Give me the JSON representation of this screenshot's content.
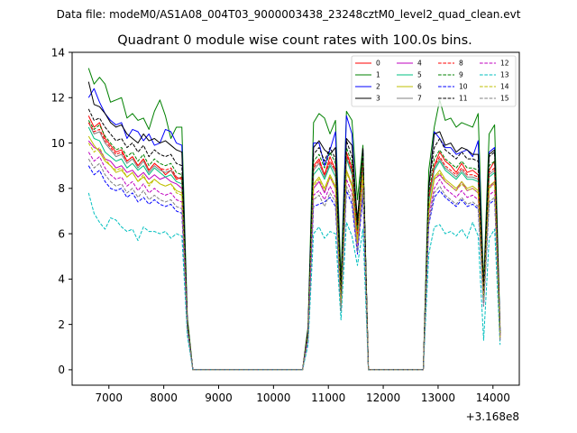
{
  "suptitle": "Data file: modeM0/AS1A08_004T03_9000003438_23248cztM0_level2_quad_clean.evt",
  "chart_data": {
    "type": "line",
    "title": "Quadrant 0 module wise count rates with 100.0s bins.",
    "xlabel": "",
    "ylabel": "",
    "x_offset_label": "+3.168e8",
    "xlim": [
      6330,
      14480
    ],
    "ylim": [
      -0.68,
      14.0
    ],
    "xticks": [
      7000,
      8000,
      9000,
      10000,
      11000,
      12000,
      13000,
      14000
    ],
    "yticks": [
      0,
      2,
      4,
      6,
      8,
      10,
      12,
      14
    ],
    "legend_position": "upper-right",
    "x": [
      6630,
      6730,
      6830,
      6930,
      7030,
      7130,
      7230,
      7330,
      7430,
      7530,
      7630,
      7730,
      7830,
      7930,
      8030,
      8130,
      8230,
      8330,
      8430,
      8530,
      10530,
      10630,
      10730,
      10830,
      10930,
      11030,
      11130,
      11230,
      11330,
      11430,
      11530,
      11630,
      11730,
      12730,
      12830,
      12930,
      13030,
      13130,
      13230,
      13330,
      13430,
      13530,
      13630,
      13730,
      13830,
      13930,
      14030,
      14130
    ],
    "series": [
      {
        "name": "0",
        "color": "#ff0000",
        "dash": "solid",
        "values": [
          11.2,
          10.7,
          10.9,
          10.2,
          9.9,
          9.6,
          9.7,
          9.2,
          9.4,
          9.0,
          9.3,
          8.8,
          9.1,
          8.9,
          8.6,
          8.8,
          8.4,
          8.5,
          2.0,
          0.0,
          0.0,
          1.5,
          9.0,
          9.3,
          8.6,
          9.4,
          8.8,
          3.0,
          9.6,
          8.9,
          6.0,
          9.4,
          0.0,
          0.0,
          7.6,
          9.0,
          9.6,
          9.2,
          9.0,
          8.7,
          9.1,
          8.7,
          8.8,
          8.6,
          3.2,
          8.8,
          9.2,
          1.5
        ]
      },
      {
        "name": "1",
        "color": "#008000",
        "dash": "solid",
        "values": [
          13.3,
          12.6,
          12.9,
          12.6,
          11.8,
          11.9,
          12.0,
          11.1,
          11.3,
          11.0,
          11.1,
          10.6,
          11.4,
          11.9,
          11.2,
          10.2,
          10.7,
          10.7,
          2.3,
          0.0,
          0.0,
          1.9,
          10.9,
          11.3,
          11.1,
          10.4,
          11.0,
          4.0,
          11.4,
          11.0,
          7.5,
          9.9,
          0.0,
          0.0,
          8.8,
          10.7,
          11.9,
          11.0,
          11.1,
          10.7,
          10.9,
          10.8,
          10.7,
          11.3,
          3.8,
          10.4,
          10.8,
          1.8
        ]
      },
      {
        "name": "2",
        "color": "#0000ff",
        "dash": "solid",
        "values": [
          12.0,
          12.4,
          11.8,
          11.3,
          11.0,
          10.8,
          10.9,
          10.2,
          10.6,
          10.5,
          10.1,
          10.4,
          9.9,
          10.0,
          10.6,
          10.5,
          10.0,
          9.9,
          2.1,
          0.0,
          0.0,
          1.7,
          10.0,
          10.0,
          9.0,
          9.7,
          10.5,
          3.4,
          11.2,
          10.4,
          6.3,
          9.7,
          0.0,
          0.0,
          8.0,
          10.5,
          10.2,
          9.8,
          9.8,
          9.5,
          9.6,
          9.7,
          9.4,
          10.1,
          3.4,
          9.6,
          9.8,
          1.7
        ]
      },
      {
        "name": "3",
        "color": "#000000",
        "dash": "solid",
        "values": [
          12.7,
          11.7,
          11.6,
          11.3,
          10.9,
          10.7,
          10.8,
          10.4,
          10.2,
          10.0,
          10.4,
          10.1,
          10.2,
          10.0,
          10.1,
          9.9,
          9.7,
          9.6,
          2.2,
          0.0,
          0.0,
          1.8,
          9.8,
          10.1,
          9.7,
          9.5,
          9.8,
          3.6,
          10.2,
          9.9,
          6.6,
          9.7,
          0.0,
          0.0,
          8.1,
          10.4,
          10.5,
          9.9,
          10.0,
          9.6,
          9.8,
          9.7,
          9.5,
          9.5,
          3.5,
          9.5,
          9.7,
          1.7
        ]
      },
      {
        "name": "4",
        "color": "#bf00bf",
        "dash": "solid",
        "values": [
          10.1,
          9.8,
          9.7,
          9.3,
          9.2,
          8.9,
          9.0,
          8.7,
          8.8,
          8.5,
          8.7,
          8.4,
          8.6,
          8.4,
          8.5,
          8.3,
          8.2,
          8.0,
          1.9,
          0.0,
          0.0,
          1.5,
          8.0,
          8.3,
          7.8,
          8.5,
          8.0,
          2.8,
          8.8,
          8.1,
          5.6,
          8.6,
          0.0,
          0.0,
          7.0,
          8.4,
          8.6,
          8.3,
          8.1,
          7.9,
          8.3,
          7.9,
          8.0,
          7.8,
          3.0,
          8.0,
          8.3,
          1.4
        ]
      },
      {
        "name": "5",
        "color": "#00c080",
        "dash": "solid",
        "values": [
          10.7,
          10.2,
          10.1,
          9.6,
          9.4,
          9.2,
          9.3,
          8.9,
          9.1,
          8.8,
          9.0,
          8.6,
          8.9,
          8.7,
          8.5,
          8.6,
          8.3,
          8.2,
          2.0,
          0.0,
          0.0,
          1.6,
          8.6,
          8.9,
          8.4,
          9.0,
          8.5,
          3.0,
          9.3,
          8.6,
          5.9,
          9.0,
          0.0,
          0.0,
          7.4,
          8.8,
          9.2,
          8.8,
          8.6,
          8.4,
          8.7,
          8.4,
          8.4,
          8.3,
          3.1,
          8.5,
          8.7,
          1.5
        ]
      },
      {
        "name": "6",
        "color": "#bfbf00",
        "dash": "solid",
        "values": [
          10.3,
          9.9,
          9.6,
          9.2,
          9.0,
          8.7,
          8.8,
          8.5,
          8.7,
          8.3,
          8.5,
          8.2,
          8.4,
          8.2,
          8.1,
          8.2,
          7.9,
          7.8,
          1.9,
          0.0,
          0.0,
          1.5,
          8.2,
          8.5,
          8.0,
          8.6,
          8.1,
          2.8,
          8.8,
          8.2,
          5.7,
          8.6,
          0.0,
          0.0,
          7.1,
          8.5,
          8.8,
          8.4,
          8.2,
          8.0,
          8.3,
          8.0,
          8.1,
          7.9,
          3.0,
          8.1,
          8.3,
          1.4
        ]
      },
      {
        "name": "7",
        "color": "#808080",
        "dash": "solid",
        "values": [
          10.9,
          10.4,
          10.5,
          10.0,
          9.7,
          9.4,
          9.5,
          9.1,
          9.3,
          8.9,
          9.2,
          8.7,
          9.0,
          8.8,
          8.7,
          8.8,
          8.5,
          8.4,
          2.0,
          0.0,
          0.0,
          1.6,
          8.8,
          9.1,
          8.5,
          9.1,
          8.7,
          3.0,
          9.4,
          8.7,
          6.0,
          9.1,
          0.0,
          0.0,
          7.5,
          8.9,
          9.3,
          8.9,
          8.7,
          8.5,
          8.8,
          8.5,
          8.5,
          8.4,
          3.1,
          8.6,
          8.8,
          1.5
        ]
      },
      {
        "name": "8",
        "color": "#ff0000",
        "dash": "dashed",
        "values": [
          10.9,
          10.5,
          10.6,
          10.1,
          9.8,
          9.5,
          9.6,
          9.2,
          9.4,
          9.0,
          9.3,
          8.8,
          9.1,
          8.9,
          8.8,
          8.9,
          8.5,
          8.4,
          2.0,
          0.0,
          0.0,
          1.6,
          8.9,
          9.2,
          8.6,
          9.2,
          8.8,
          3.1,
          9.5,
          8.8,
          6.0,
          9.2,
          0.0,
          0.0,
          7.6,
          9.0,
          9.4,
          9.0,
          8.8,
          8.6,
          8.9,
          8.6,
          8.6,
          8.5,
          3.2,
          8.7,
          8.9,
          1.5
        ]
      },
      {
        "name": "9",
        "color": "#008000",
        "dash": "dashed",
        "values": [
          11.0,
          10.6,
          10.8,
          10.3,
          10.0,
          9.7,
          9.8,
          9.4,
          9.6,
          9.2,
          9.5,
          9.0,
          9.3,
          9.1,
          9.0,
          9.1,
          8.7,
          8.6,
          2.1,
          0.0,
          0.0,
          1.6,
          9.2,
          9.5,
          8.9,
          9.6,
          9.1,
          3.2,
          9.8,
          9.1,
          6.2,
          9.5,
          0.0,
          0.0,
          7.8,
          9.3,
          9.7,
          9.3,
          9.1,
          8.9,
          9.2,
          8.9,
          8.9,
          8.8,
          3.3,
          9.0,
          9.2,
          1.6
        ]
      },
      {
        "name": "10",
        "color": "#0000ff",
        "dash": "dashed",
        "values": [
          9.0,
          8.6,
          8.8,
          8.3,
          8.0,
          7.9,
          8.0,
          7.6,
          7.8,
          7.4,
          7.6,
          7.3,
          7.5,
          7.3,
          7.2,
          7.3,
          7.0,
          6.9,
          1.7,
          0.0,
          0.0,
          1.3,
          7.2,
          7.3,
          7.4,
          7.6,
          7.2,
          2.6,
          7.9,
          7.3,
          5.1,
          7.7,
          0.0,
          0.0,
          6.4,
          7.6,
          7.9,
          7.6,
          7.4,
          7.2,
          7.5,
          7.2,
          7.3,
          7.1,
          2.8,
          7.3,
          7.5,
          1.3
        ]
      },
      {
        "name": "11",
        "color": "#000000",
        "dash": "dashed",
        "values": [
          11.5,
          11.0,
          11.1,
          10.7,
          10.4,
          10.1,
          10.2,
          9.8,
          10.0,
          9.6,
          9.9,
          9.4,
          9.7,
          9.5,
          9.4,
          9.5,
          9.1,
          9.0,
          2.1,
          0.0,
          0.0,
          1.7,
          9.5,
          9.8,
          9.2,
          9.8,
          9.3,
          3.3,
          10.1,
          9.4,
          6.4,
          9.8,
          0.0,
          0.0,
          8.1,
          9.8,
          10.2,
          9.7,
          9.5,
          9.3,
          9.6,
          9.3,
          9.3,
          9.2,
          3.4,
          9.4,
          9.6,
          1.6
        ]
      },
      {
        "name": "12",
        "color": "#bf00bf",
        "dash": "dashed",
        "values": [
          9.6,
          9.2,
          9.4,
          8.9,
          8.6,
          8.4,
          8.5,
          8.1,
          8.3,
          7.9,
          8.2,
          7.8,
          8.0,
          7.8,
          7.7,
          7.8,
          7.5,
          7.4,
          1.8,
          0.0,
          0.0,
          1.4,
          7.7,
          7.9,
          7.5,
          8.1,
          7.6,
          2.7,
          8.4,
          7.8,
          5.4,
          8.2,
          0.0,
          0.0,
          6.7,
          8.0,
          8.4,
          8.0,
          7.8,
          7.6,
          7.9,
          7.6,
          7.7,
          7.5,
          2.9,
          7.7,
          7.9,
          1.4
        ]
      },
      {
        "name": "13",
        "color": "#00bfbf",
        "dash": "dashed",
        "values": [
          7.8,
          6.9,
          6.5,
          6.2,
          6.7,
          6.6,
          6.3,
          6.1,
          6.2,
          5.7,
          6.3,
          6.1,
          6.1,
          6.0,
          6.1,
          5.8,
          6.0,
          5.9,
          1.5,
          0.0,
          0.0,
          1.1,
          6.0,
          6.3,
          5.8,
          6.1,
          6.0,
          2.2,
          6.5,
          5.9,
          4.6,
          6.2,
          0.0,
          0.0,
          5.1,
          6.3,
          6.4,
          6.0,
          6.1,
          5.9,
          6.2,
          5.8,
          6.5,
          5.9,
          1.3,
          5.8,
          6.2,
          1.1
        ]
      },
      {
        "name": "14",
        "color": "#bfbf00",
        "dash": "dashed",
        "values": [
          10.0,
          9.6,
          9.8,
          9.3,
          9.0,
          8.8,
          8.9,
          8.5,
          8.7,
          8.3,
          8.6,
          8.1,
          8.4,
          8.2,
          8.1,
          8.2,
          7.8,
          7.7,
          1.9,
          0.0,
          0.0,
          1.5,
          8.1,
          8.4,
          7.9,
          8.5,
          8.0,
          2.8,
          8.7,
          8.1,
          5.6,
          8.5,
          0.0,
          0.0,
          7.0,
          8.4,
          8.7,
          8.3,
          8.1,
          7.9,
          8.2,
          7.9,
          8.0,
          7.8,
          3.0,
          8.0,
          8.2,
          1.4
        ]
      },
      {
        "name": "15",
        "color": "#808080",
        "dash": "dashed",
        "values": [
          9.3,
          8.9,
          9.1,
          8.6,
          8.3,
          8.1,
          8.2,
          7.8,
          8.0,
          7.6,
          7.9,
          7.5,
          7.7,
          7.5,
          7.4,
          7.5,
          7.2,
          7.1,
          1.8,
          0.0,
          0.0,
          1.4,
          7.5,
          7.7,
          7.2,
          7.8,
          7.4,
          2.6,
          8.1,
          7.5,
          5.2,
          7.9,
          0.0,
          0.0,
          6.5,
          7.8,
          8.1,
          7.7,
          7.5,
          7.3,
          7.6,
          7.3,
          7.4,
          7.2,
          2.8,
          7.4,
          7.6,
          1.3
        ]
      }
    ]
  }
}
